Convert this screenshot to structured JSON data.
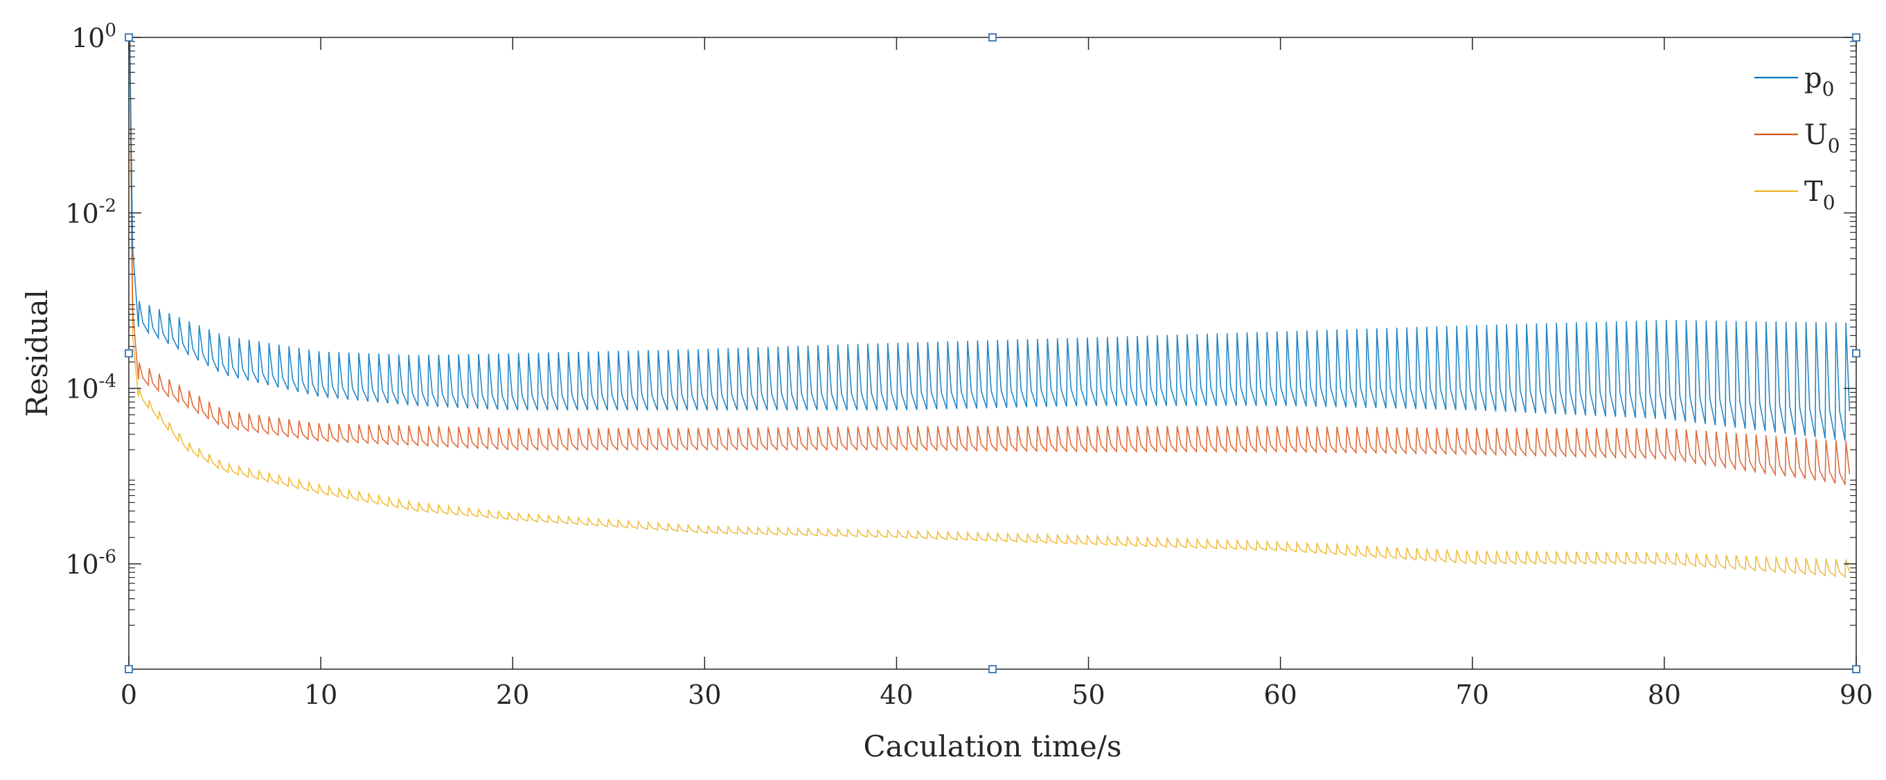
{
  "chart_data": {
    "type": "line",
    "title": "",
    "xlabel": "Caculation time/s",
    "ylabel": "Residual",
    "xlim": [
      0,
      90
    ],
    "ylim_log10": [
      -7.2,
      0
    ],
    "yscale": "log",
    "grid": false,
    "legend_position": "top-right",
    "x_ticks": [
      {
        "value": 0,
        "label": "0"
      },
      {
        "value": 10,
        "label": "10"
      },
      {
        "value": 20,
        "label": "20"
      },
      {
        "value": 30,
        "label": "30"
      },
      {
        "value": 40,
        "label": "40"
      },
      {
        "value": 50,
        "label": "50"
      },
      {
        "value": 60,
        "label": "60"
      },
      {
        "value": 70,
        "label": "70"
      },
      {
        "value": 80,
        "label": "80"
      },
      {
        "value": 90,
        "label": "90"
      }
    ],
    "y_ticks": [
      {
        "exp": 0,
        "base": "10",
        "sup": "0"
      },
      {
        "exp": -2,
        "base": "10",
        "sup": "-2"
      },
      {
        "exp": -4,
        "base": "10",
        "sup": "-4"
      },
      {
        "exp": -6,
        "base": "10",
        "sup": "-6"
      }
    ],
    "series": [
      {
        "name": "p",
        "subscript": "0",
        "color": "#0072BD",
        "spike_period": 0.52,
        "x": [
          0.5,
          5,
          10,
          15,
          20,
          30,
          40,
          50,
          60,
          70,
          80,
          89.5
        ],
        "low": [
          -3.3,
          -3.85,
          -4.1,
          -4.2,
          -4.25,
          -4.25,
          -4.25,
          -4.2,
          -4.2,
          -4.25,
          -4.35,
          -4.6
        ],
        "high": [
          -3.0,
          -3.4,
          -3.58,
          -3.62,
          -3.6,
          -3.55,
          -3.48,
          -3.42,
          -3.35,
          -3.28,
          -3.22,
          -3.25
        ]
      },
      {
        "name": "U",
        "subscript": "0",
        "color": "#D95319",
        "spike_period": 0.52,
        "x": [
          0.5,
          5,
          10,
          20,
          30,
          40,
          50,
          60,
          70,
          80,
          89.5
        ],
        "low": [
          -3.9,
          -4.45,
          -4.6,
          -4.7,
          -4.7,
          -4.7,
          -4.72,
          -4.72,
          -4.75,
          -4.8,
          -5.1
        ],
        "high": [
          -3.7,
          -4.25,
          -4.4,
          -4.45,
          -4.45,
          -4.43,
          -4.43,
          -4.43,
          -4.45,
          -4.45,
          -4.6
        ]
      },
      {
        "name": "T",
        "subscript": "0",
        "color": "#EDB120",
        "spike_period": 0.52,
        "x": [
          0.5,
          3,
          5,
          10,
          15,
          20,
          30,
          40,
          50,
          60,
          70,
          80,
          89.5
        ],
        "low": [
          -4.1,
          -4.7,
          -4.95,
          -5.2,
          -5.4,
          -5.5,
          -5.65,
          -5.7,
          -5.78,
          -5.85,
          -6.0,
          -6.0,
          -6.15
        ],
        "high": [
          -4.0,
          -4.6,
          -4.85,
          -5.1,
          -5.3,
          -5.42,
          -5.57,
          -5.62,
          -5.68,
          -5.75,
          -5.85,
          -5.87,
          -5.95
        ]
      }
    ],
    "initial_spike": {
      "x": 0.05,
      "peak_exp": -0.05
    }
  }
}
